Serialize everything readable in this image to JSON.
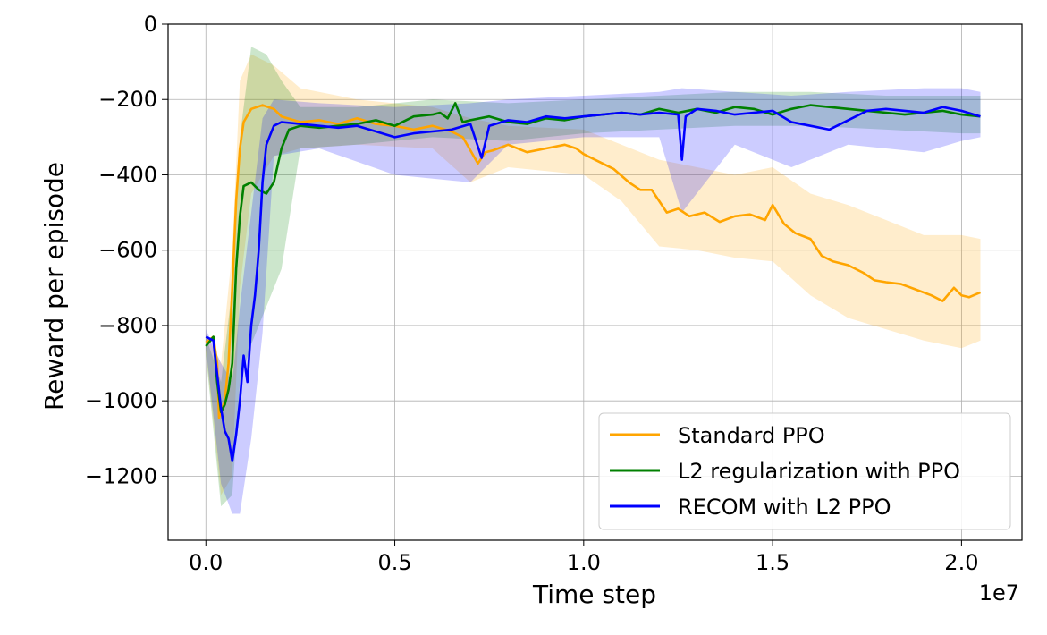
{
  "chart_data": {
    "type": "line",
    "title": "",
    "xlabel": "Time step",
    "ylabel": "Reward per episode",
    "x_offset_label": "1e7",
    "xlim": [
      -0.1,
      2.16
    ],
    "ylim": [
      -1370,
      0
    ],
    "x_ticks": [
      0.0,
      0.5,
      1.0,
      1.5,
      2.0
    ],
    "x_tick_labels": [
      "0.0",
      "0.5",
      "1.0",
      "1.5",
      "2.0"
    ],
    "y_ticks": [
      0,
      -200,
      -400,
      -600,
      -800,
      -1000,
      -1200
    ],
    "y_tick_labels": [
      "0",
      "−200",
      "−400",
      "−600",
      "−800",
      "−1000",
      "−1200"
    ],
    "grid": true,
    "legend_position": "lower-right",
    "series": [
      {
        "name": "Standard PPO",
        "color": "#ffa500",
        "points": [
          [
            0.0,
            -845
          ],
          [
            0.02,
            -830
          ],
          [
            0.03,
            -900
          ],
          [
            0.035,
            -1045
          ],
          [
            0.05,
            -1000
          ],
          [
            0.06,
            -900
          ],
          [
            0.07,
            -700
          ],
          [
            0.08,
            -470
          ],
          [
            0.09,
            -330
          ],
          [
            0.1,
            -260
          ],
          [
            0.12,
            -225
          ],
          [
            0.15,
            -215
          ],
          [
            0.18,
            -225
          ],
          [
            0.2,
            -245
          ],
          [
            0.25,
            -260
          ],
          [
            0.3,
            -255
          ],
          [
            0.35,
            -265
          ],
          [
            0.4,
            -250
          ],
          [
            0.45,
            -265
          ],
          [
            0.5,
            -270
          ],
          [
            0.55,
            -280
          ],
          [
            0.6,
            -270
          ],
          [
            0.65,
            -285
          ],
          [
            0.68,
            -300
          ],
          [
            0.7,
            -335
          ],
          [
            0.72,
            -370
          ],
          [
            0.74,
            -340
          ],
          [
            0.76,
            -335
          ],
          [
            0.8,
            -320
          ],
          [
            0.85,
            -340
          ],
          [
            0.9,
            -330
          ],
          [
            0.95,
            -320
          ],
          [
            0.98,
            -330
          ],
          [
            1.0,
            -345
          ],
          [
            1.05,
            -370
          ],
          [
            1.08,
            -385
          ],
          [
            1.12,
            -420
          ],
          [
            1.15,
            -440
          ],
          [
            1.18,
            -440
          ],
          [
            1.2,
            -470
          ],
          [
            1.22,
            -500
          ],
          [
            1.25,
            -490
          ],
          [
            1.28,
            -510
          ],
          [
            1.32,
            -500
          ],
          [
            1.36,
            -525
          ],
          [
            1.4,
            -510
          ],
          [
            1.44,
            -505
          ],
          [
            1.48,
            -520
          ],
          [
            1.5,
            -480
          ],
          [
            1.53,
            -530
          ],
          [
            1.56,
            -555
          ],
          [
            1.6,
            -570
          ],
          [
            1.63,
            -615
          ],
          [
            1.66,
            -630
          ],
          [
            1.7,
            -640
          ],
          [
            1.74,
            -660
          ],
          [
            1.77,
            -680
          ],
          [
            1.8,
            -685
          ],
          [
            1.84,
            -690
          ],
          [
            1.88,
            -705
          ],
          [
            1.92,
            -720
          ],
          [
            1.95,
            -735
          ],
          [
            1.98,
            -700
          ],
          [
            2.0,
            -720
          ],
          [
            2.02,
            -725
          ],
          [
            2.05,
            -712
          ]
        ],
        "band": [
          [
            0.0,
            -820,
            -870
          ],
          [
            0.04,
            -900,
            -1250
          ],
          [
            0.07,
            -600,
            -1200
          ],
          [
            0.09,
            -150,
            -700
          ],
          [
            0.12,
            -80,
            -450
          ],
          [
            0.18,
            -110,
            -350
          ],
          [
            0.25,
            -170,
            -330
          ],
          [
            0.4,
            -200,
            -320
          ],
          [
            0.6,
            -220,
            -330
          ],
          [
            0.7,
            -250,
            -420
          ],
          [
            0.8,
            -270,
            -380
          ],
          [
            1.0,
            -280,
            -400
          ],
          [
            1.1,
            -320,
            -470
          ],
          [
            1.2,
            -360,
            -590
          ],
          [
            1.3,
            -380,
            -600
          ],
          [
            1.4,
            -400,
            -620
          ],
          [
            1.5,
            -380,
            -630
          ],
          [
            1.6,
            -450,
            -720
          ],
          [
            1.7,
            -480,
            -780
          ],
          [
            1.8,
            -520,
            -810
          ],
          [
            1.9,
            -560,
            -840
          ],
          [
            2.0,
            -560,
            -860
          ],
          [
            2.05,
            -570,
            -840
          ]
        ]
      },
      {
        "name": "L2 regularization with PPO",
        "color": "#008000",
        "points": [
          [
            0.0,
            -855
          ],
          [
            0.02,
            -830
          ],
          [
            0.03,
            -950
          ],
          [
            0.04,
            -1030
          ],
          [
            0.05,
            -1010
          ],
          [
            0.06,
            -970
          ],
          [
            0.07,
            -900
          ],
          [
            0.08,
            -650
          ],
          [
            0.09,
            -510
          ],
          [
            0.1,
            -430
          ],
          [
            0.12,
            -420
          ],
          [
            0.14,
            -440
          ],
          [
            0.16,
            -450
          ],
          [
            0.18,
            -420
          ],
          [
            0.2,
            -330
          ],
          [
            0.22,
            -280
          ],
          [
            0.25,
            -270
          ],
          [
            0.3,
            -275
          ],
          [
            0.35,
            -270
          ],
          [
            0.4,
            -265
          ],
          [
            0.45,
            -255
          ],
          [
            0.5,
            -270
          ],
          [
            0.55,
            -245
          ],
          [
            0.6,
            -240
          ],
          [
            0.62,
            -235
          ],
          [
            0.64,
            -250
          ],
          [
            0.66,
            -210
          ],
          [
            0.68,
            -260
          ],
          [
            0.7,
            -255
          ],
          [
            0.75,
            -245
          ],
          [
            0.8,
            -260
          ],
          [
            0.85,
            -265
          ],
          [
            0.9,
            -250
          ],
          [
            0.95,
            -255
          ],
          [
            1.0,
            -245
          ],
          [
            1.05,
            -240
          ],
          [
            1.1,
            -235
          ],
          [
            1.15,
            -240
          ],
          [
            1.2,
            -225
          ],
          [
            1.25,
            -235
          ],
          [
            1.3,
            -225
          ],
          [
            1.35,
            -235
          ],
          [
            1.4,
            -220
          ],
          [
            1.45,
            -225
          ],
          [
            1.5,
            -240
          ],
          [
            1.55,
            -225
          ],
          [
            1.6,
            -215
          ],
          [
            1.65,
            -220
          ],
          [
            1.7,
            -225
          ],
          [
            1.75,
            -230
          ],
          [
            1.8,
            -235
          ],
          [
            1.85,
            -240
          ],
          [
            1.9,
            -235
          ],
          [
            1.95,
            -230
          ],
          [
            2.0,
            -240
          ],
          [
            2.05,
            -245
          ]
        ],
        "band": [
          [
            0.0,
            -830,
            -880
          ],
          [
            0.04,
            -950,
            -1280
          ],
          [
            0.07,
            -700,
            -1250
          ],
          [
            0.09,
            -300,
            -950
          ],
          [
            0.12,
            -60,
            -850
          ],
          [
            0.16,
            -80,
            -750
          ],
          [
            0.2,
            -150,
            -650
          ],
          [
            0.25,
            -220,
            -330
          ],
          [
            0.4,
            -220,
            -320
          ],
          [
            0.6,
            -200,
            -300
          ],
          [
            0.8,
            -210,
            -310
          ],
          [
            1.0,
            -200,
            -290
          ],
          [
            1.2,
            -190,
            -280
          ],
          [
            1.4,
            -180,
            -270
          ],
          [
            1.6,
            -180,
            -270
          ],
          [
            1.8,
            -190,
            -280
          ],
          [
            2.0,
            -190,
            -290
          ],
          [
            2.05,
            -190,
            -290
          ]
        ]
      },
      {
        "name": "RECOM with L2 PPO",
        "color": "#0000ff",
        "points": [
          [
            0.0,
            -830
          ],
          [
            0.02,
            -840
          ],
          [
            0.03,
            -930
          ],
          [
            0.04,
            -1020
          ],
          [
            0.05,
            -1080
          ],
          [
            0.06,
            -1100
          ],
          [
            0.07,
            -1160
          ],
          [
            0.08,
            -1090
          ],
          [
            0.09,
            -1000
          ],
          [
            0.1,
            -880
          ],
          [
            0.11,
            -950
          ],
          [
            0.12,
            -800
          ],
          [
            0.13,
            -720
          ],
          [
            0.14,
            -600
          ],
          [
            0.15,
            -420
          ],
          [
            0.16,
            -320
          ],
          [
            0.18,
            -270
          ],
          [
            0.2,
            -260
          ],
          [
            0.25,
            -265
          ],
          [
            0.3,
            -270
          ],
          [
            0.35,
            -275
          ],
          [
            0.4,
            -270
          ],
          [
            0.45,
            -285
          ],
          [
            0.5,
            -300
          ],
          [
            0.55,
            -290
          ],
          [
            0.6,
            -285
          ],
          [
            0.65,
            -280
          ],
          [
            0.7,
            -265
          ],
          [
            0.73,
            -355
          ],
          [
            0.75,
            -270
          ],
          [
            0.8,
            -255
          ],
          [
            0.85,
            -260
          ],
          [
            0.9,
            -245
          ],
          [
            0.95,
            -250
          ],
          [
            1.0,
            -245
          ],
          [
            1.05,
            -240
          ],
          [
            1.1,
            -235
          ],
          [
            1.15,
            -240
          ],
          [
            1.2,
            -235
          ],
          [
            1.25,
            -240
          ],
          [
            1.26,
            -360
          ],
          [
            1.27,
            -245
          ],
          [
            1.3,
            -225
          ],
          [
            1.35,
            -230
          ],
          [
            1.4,
            -240
          ],
          [
            1.45,
            -235
          ],
          [
            1.5,
            -230
          ],
          [
            1.55,
            -260
          ],
          [
            1.6,
            -270
          ],
          [
            1.65,
            -280
          ],
          [
            1.7,
            -255
          ],
          [
            1.75,
            -230
          ],
          [
            1.8,
            -225
          ],
          [
            1.85,
            -230
          ],
          [
            1.9,
            -235
          ],
          [
            1.95,
            -220
          ],
          [
            2.0,
            -230
          ],
          [
            2.05,
            -245
          ]
        ],
        "band": [
          [
            0.0,
            -810,
            -860
          ],
          [
            0.04,
            -900,
            -1220
          ],
          [
            0.07,
            -950,
            -1300
          ],
          [
            0.09,
            -750,
            -1300
          ],
          [
            0.12,
            -500,
            -1100
          ],
          [
            0.15,
            -250,
            -820
          ],
          [
            0.18,
            -200,
            -350
          ],
          [
            0.3,
            -210,
            -330
          ],
          [
            0.5,
            -220,
            -400
          ],
          [
            0.7,
            -210,
            -420
          ],
          [
            0.8,
            -200,
            -320
          ],
          [
            1.0,
            -190,
            -300
          ],
          [
            1.2,
            -180,
            -300
          ],
          [
            1.26,
            -170,
            -500
          ],
          [
            1.4,
            -180,
            -320
          ],
          [
            1.55,
            -190,
            -380
          ],
          [
            1.7,
            -180,
            -320
          ],
          [
            1.9,
            -170,
            -340
          ],
          [
            2.0,
            -170,
            -310
          ],
          [
            2.05,
            -180,
            -300
          ]
        ]
      }
    ]
  }
}
